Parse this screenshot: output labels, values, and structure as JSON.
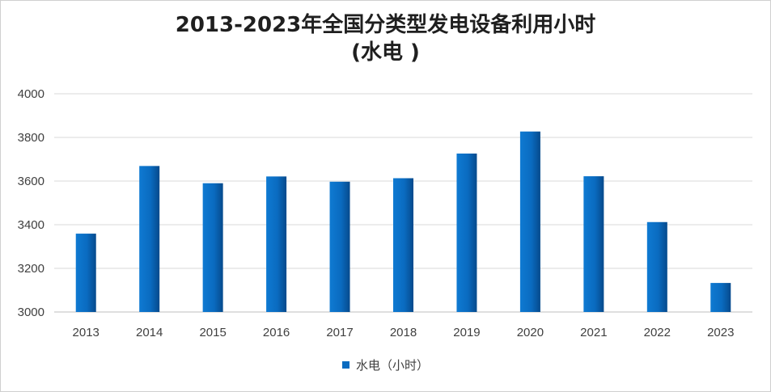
{
  "chart_data": {
    "type": "bar",
    "title": "2013-2023年全国分类型发电设备利用小时",
    "subtitle": "(水电 )",
    "categories": [
      "2013",
      "2014",
      "2015",
      "2016",
      "2017",
      "2018",
      "2019",
      "2020",
      "2021",
      "2022",
      "2023"
    ],
    "series": [
      {
        "name": "水电（小时）",
        "values": [
          3359,
          3669,
          3590,
          3621,
          3597,
          3613,
          3726,
          3827,
          3622,
          3412,
          3133
        ]
      }
    ],
    "xlabel": "",
    "ylabel": "",
    "ylim": [
      3000,
      4000
    ],
    "yticks": [
      3000,
      3200,
      3400,
      3600,
      3800,
      4000
    ],
    "grid": true,
    "legend": "bottom",
    "colors": {
      "bar": "#0a6bc0",
      "bar_dark": "#064a8c",
      "grid": "#d9d9d9"
    }
  }
}
